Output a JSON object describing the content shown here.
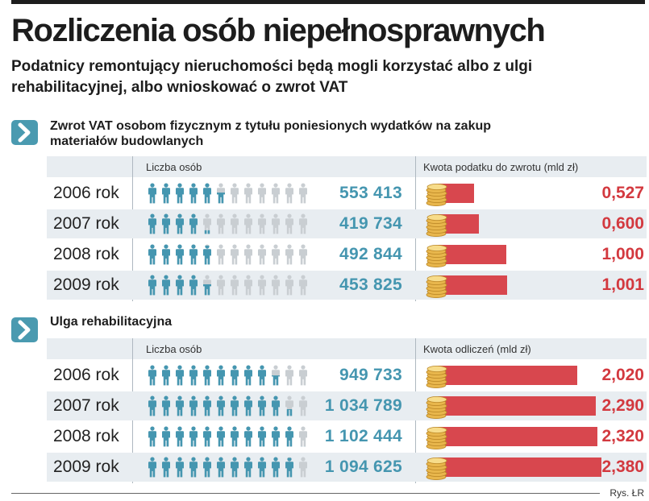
{
  "title": "Rozliczenia osób niepełnosprawnych",
  "subtitle": "Podatnicy remontujący nieruchomości będą mogli korzystać albo z ulgi rehabilitacyjnej, albo wnioskować o zwrot VAT",
  "sections": [
    {
      "title": "Zwrot VAT osobom fizycznym z tytułu poniesionych wydatków na zakup materiałów budowlanych",
      "col_people": "Liczba osób",
      "col_amount": "Kwota podatku do zwrotu (mld zł)",
      "rows": [
        {
          "year": "2006 rok",
          "count": "553 413",
          "amount": "0,527"
        },
        {
          "year": "2007 rok",
          "count": "419 734",
          "amount": "0,600"
        },
        {
          "year": "2008 rok",
          "count": "492 844",
          "amount": "1,000"
        },
        {
          "year": "2009 rok",
          "count": "453 825",
          "amount": "1,001"
        }
      ]
    },
    {
      "title": "Ulga rehabilitacyjna",
      "col_people": "Liczba osób",
      "col_amount": "Kwota odliczeń (mld zł)",
      "rows": [
        {
          "year": "2006 rok",
          "count": "949 733",
          "amount": "2,020"
        },
        {
          "year": "2007 rok",
          "count": "1 034 789",
          "amount": "2,290"
        },
        {
          "year": "2008 rok",
          "count": "1 102 444",
          "amount": "2,320"
        },
        {
          "year": "2009 rok",
          "count": "1 094 625",
          "amount": "2,380"
        }
      ]
    }
  ],
  "chart_data": [
    {
      "type": "bar",
      "title": "Zwrot VAT osobom fizycznym z tytułu poniesionych wydatków na zakup materiałów budowlanych",
      "categories": [
        "2006 rok",
        "2007 rok",
        "2008 rok",
        "2009 rok"
      ],
      "series": [
        {
          "name": "Liczba osób",
          "values": [
            553413,
            419734,
            492844,
            453825
          ],
          "color": "#4596b0"
        },
        {
          "name": "Kwota podatku do zwrotu (mld zł)",
          "values": [
            0.527,
            0.6,
            1.0,
            1.001
          ],
          "color": "#d8474e"
        }
      ],
      "bar_scale_max": 2.4,
      "people_per_icon": 100000
    },
    {
      "type": "bar",
      "title": "Ulga rehabilitacyjna",
      "categories": [
        "2006 rok",
        "2007 rok",
        "2008 rok",
        "2009 rok"
      ],
      "series": [
        {
          "name": "Liczba osób",
          "values": [
            949733,
            1034789,
            1102444,
            1094625
          ],
          "color": "#4596b0"
        },
        {
          "name": "Kwota odliczeń (mld zł)",
          "values": [
            2.02,
            2.29,
            2.32,
            2.38
          ],
          "color": "#d8474e"
        }
      ],
      "bar_scale_max": 2.4,
      "people_per_icon": 100000
    }
  ],
  "colors": {
    "accent": "#4596b0",
    "bar": "#d8474e",
    "amount_text": "#d3393f",
    "grey_icon": "#c9ced2",
    "shade": "#e8edf1"
  },
  "credit": "Rys. ŁR"
}
